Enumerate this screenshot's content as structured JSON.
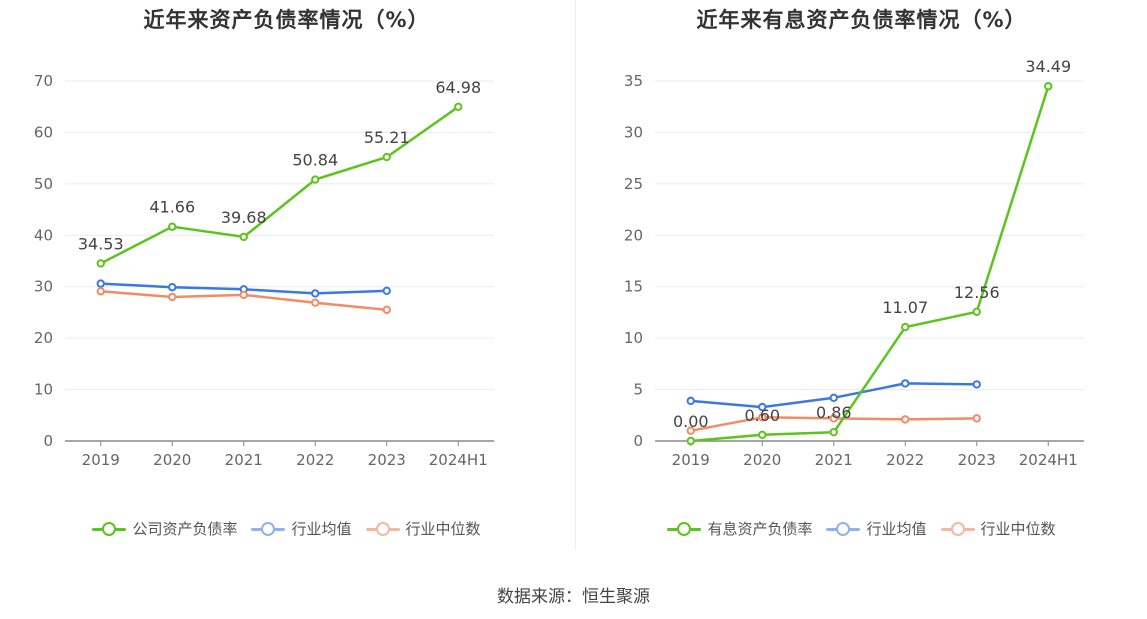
{
  "source_text": "数据来源：恒生聚源",
  "chart_data": [
    {
      "type": "line",
      "title": "近年来资产负债率情况（%）",
      "categories": [
        "2019",
        "2020",
        "2021",
        "2022",
        "2023",
        "2024H1"
      ],
      "ylim": [
        0,
        70
      ],
      "yticks": [
        0,
        10,
        20,
        30,
        40,
        50,
        60,
        70
      ],
      "grid": true,
      "legend_position": "bottom",
      "series": [
        {
          "name": "公司资产负债率",
          "color": "#5cc41e",
          "labels": true,
          "values": [
            34.53,
            41.66,
            39.68,
            50.84,
            55.21,
            64.98
          ],
          "label_text": [
            "34.53",
            "41.66",
            "39.68",
            "50.84",
            "55.21",
            "64.98"
          ]
        },
        {
          "name": "行业均值",
          "color": "#3b79e0",
          "labels": false,
          "values": [
            30.6,
            29.9,
            29.5,
            28.7,
            29.2,
            null
          ]
        },
        {
          "name": "行业中位数",
          "color": "#f28b66",
          "labels": false,
          "values": [
            29.1,
            28.0,
            28.4,
            26.9,
            25.5,
            null
          ]
        }
      ]
    },
    {
      "type": "line",
      "title": "近年来有息资产负债率情况（%）",
      "categories": [
        "2019",
        "2020",
        "2021",
        "2022",
        "2023",
        "2024H1"
      ],
      "ylim": [
        0,
        35
      ],
      "yticks": [
        0,
        5,
        10,
        15,
        20,
        25,
        30,
        35
      ],
      "grid": true,
      "legend_position": "bottom",
      "series": [
        {
          "name": "有息资产负债率",
          "color": "#5cc41e",
          "labels": true,
          "values": [
            0.0,
            0.6,
            0.86,
            11.07,
            12.56,
            34.49
          ],
          "label_text": [
            "0.00",
            "0.60",
            "0.86",
            "11.07",
            "12.56",
            "34.49"
          ]
        },
        {
          "name": "行业均值",
          "color": "#3b79e0",
          "labels": false,
          "values": [
            3.9,
            3.3,
            4.2,
            5.6,
            5.5,
            null
          ]
        },
        {
          "name": "行业中位数",
          "color": "#f28b66",
          "labels": false,
          "values": [
            1.0,
            2.3,
            2.2,
            2.1,
            2.2,
            null
          ]
        }
      ]
    }
  ]
}
